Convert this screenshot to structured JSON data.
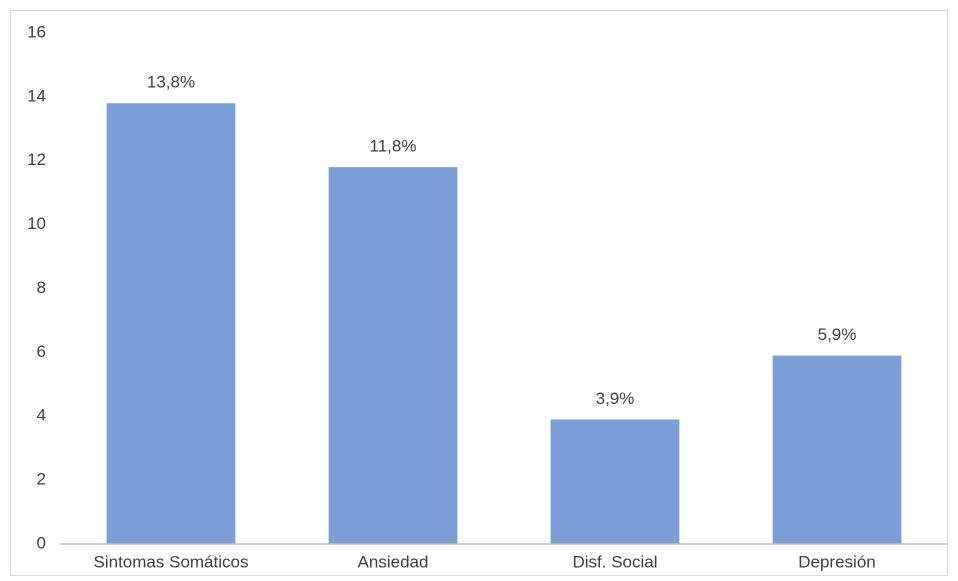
{
  "chart_data": {
    "type": "bar",
    "categories": [
      "Sintomas Somáticos",
      "Ansiedad",
      "Disf. Social",
      "Depresión"
    ],
    "values": [
      13.8,
      11.8,
      3.9,
      5.9
    ],
    "value_labels": [
      "13,8%",
      "11,8%",
      "3,9%",
      "5,9%"
    ],
    "color": "#7b9ed6",
    "ylim": [
      0,
      16
    ],
    "yticks": [
      0,
      2,
      4,
      6,
      8,
      10,
      12,
      14,
      16
    ],
    "grid": false
  }
}
